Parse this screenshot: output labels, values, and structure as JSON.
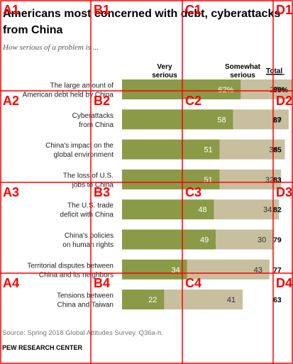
{
  "chart_data": {
    "type": "bar",
    "stacked": true,
    "orientation": "horizontal",
    "title": "Americans most concerned with debt, cyberattacks from China",
    "subtitle": "How serious of a problem is ...",
    "column_headers": {
      "very": "Very serious",
      "somewhat": "Somewhat serious",
      "total": "Total"
    },
    "categories": [
      "The large amount of American debt held by China",
      "Cyberattacks from China",
      "China's impact on the global environment",
      "The loss of U.S. jobs to China",
      "The U.S. trade deficit with China",
      "China's policies on human rights",
      "Territorial disputes between China and its neighbors",
      "Tensions between China and Taiwan"
    ],
    "series": [
      {
        "name": "Very serious",
        "color": "#8b9a46",
        "values": [
          62,
          58,
          51,
          51,
          48,
          49,
          34,
          22
        ]
      },
      {
        "name": "Somewhat serious",
        "color": "#c8bf9f",
        "values": [
          27,
          29,
          34,
          32,
          34,
          30,
          43,
          41
        ]
      }
    ],
    "totals": [
      "89%",
      "87",
      "85",
      "83",
      "82",
      "79",
      "77",
      "63"
    ],
    "source": "Source: Spring 2018 Global Attitudes Survey. Q36a-h.",
    "brand": "PEW RESEARCH CENTER",
    "xlim": [
      0,
      100
    ]
  },
  "overlay": {
    "cols": [
      "A",
      "B",
      "C",
      "D"
    ],
    "rows": [
      "1",
      "2",
      "3",
      "4"
    ]
  }
}
